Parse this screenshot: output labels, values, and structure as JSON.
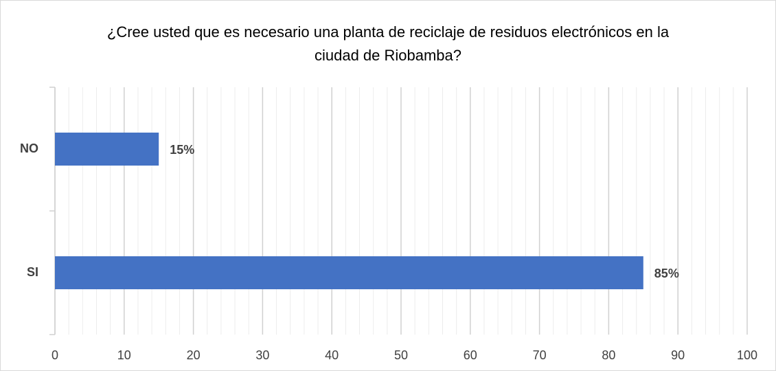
{
  "chart_data": {
    "type": "hbar",
    "title": "¿Cree usted que es necesario una planta de reciclaje de residuos electrónicos en la ciudad de Riobamba?",
    "categories": [
      "NO",
      "SI"
    ],
    "values": [
      15,
      85
    ],
    "value_labels": [
      "15%",
      "85%"
    ],
    "color": "#4472c4",
    "xlim": [
      0,
      100
    ],
    "xticks": [
      0,
      10,
      20,
      30,
      40,
      50,
      60,
      70,
      80,
      90,
      100
    ],
    "minor_xticks": [
      2,
      4,
      6,
      8,
      12,
      14,
      16,
      18,
      22,
      24,
      26,
      28,
      32,
      34,
      36,
      38,
      42,
      44,
      46,
      48,
      52,
      54,
      56,
      58,
      62,
      64,
      66,
      68,
      72,
      74,
      76,
      78,
      82,
      84,
      86,
      88,
      92,
      94,
      96,
      98
    ],
    "grid": true
  }
}
